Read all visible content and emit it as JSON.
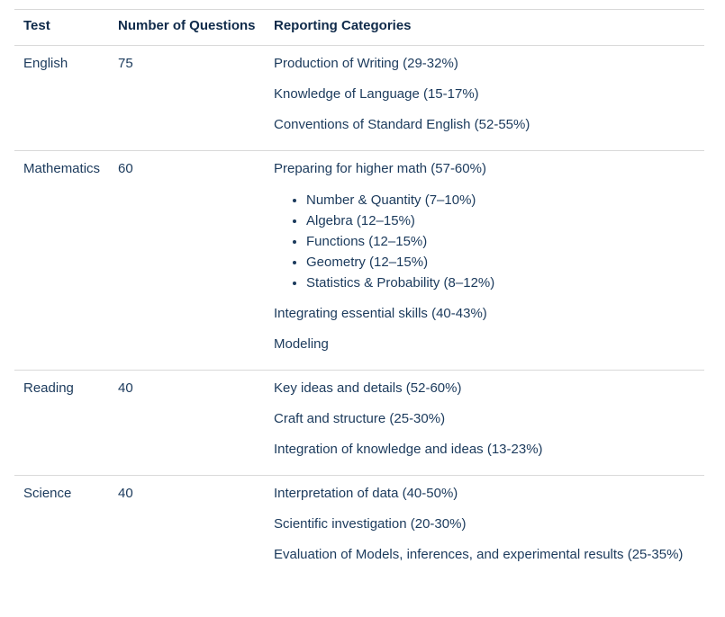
{
  "headers": {
    "test": "Test",
    "questions": "Number of Questions",
    "categories": "Reporting Categories"
  },
  "rows": [
    {
      "test": "English",
      "questions": "75",
      "categories": [
        "Production of Writing (29-32%)",
        "Knowledge of Language (15-17%)",
        "Conventions of Standard English (52-55%)"
      ]
    },
    {
      "test": "Mathematics",
      "questions": "60",
      "categories": [
        "Preparing for higher math (57-60%)",
        "Integrating essential skills (40-43%)",
        "Modeling"
      ],
      "sub_items": [
        "Number & Quantity (7–10%)",
        "Algebra (12–15%)",
        "Functions (12–15%)",
        "Geometry (12–15%)",
        "Statistics & Probability (8–12%)"
      ]
    },
    {
      "test": "Reading",
      "questions": "40",
      "categories": [
        "Key ideas and details (52-60%)",
        "Craft and structure (25-30%)",
        "Integration of knowledge and ideas (13-23%)"
      ]
    },
    {
      "test": "Science",
      "questions": "40",
      "categories": [
        "Interpretation of data (40-50%)",
        "Scientific investigation (20-30%)",
        "Evaluation of Models, inferences, and experimental results (25-35%)"
      ]
    }
  ]
}
